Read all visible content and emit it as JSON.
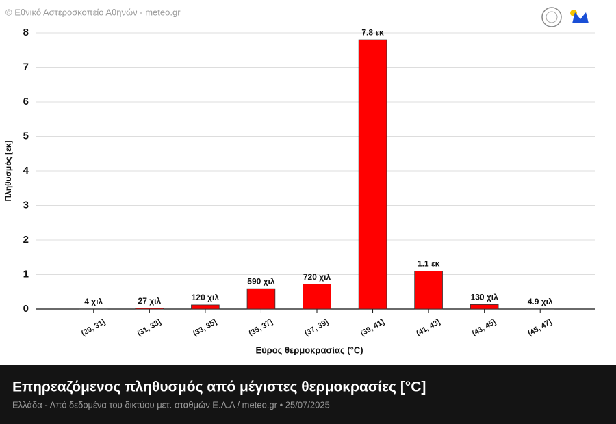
{
  "chart_data": {
    "type": "bar",
    "source": "© Εθνικό Αστεροσκοπείο Αθηνών - meteo.gr",
    "title": "Επηρεαζόμενος πληθυσμός από μέγιστες θερμοκρασίες [°C]",
    "subtitle": "Ελλάδα - Από δεδομένα του δικτύου μετ. σταθμών Ε.Α.Α / meteo.gr • 25/07/2025",
    "x_label": "Εύρος θερμοκρασίας (°C)",
    "y_label": "Πληθυσμός [εκ]",
    "categories": [
      "(29, 31]",
      "(31, 33]",
      "(33, 35]",
      "(35, 37]",
      "(37, 39]",
      "(39, 41]",
      "(41, 43]",
      "(43, 45]",
      "(45, 47]"
    ],
    "values": [
      0.004,
      0.027,
      0.12,
      0.59,
      0.72,
      7.8,
      1.1,
      0.13,
      0.0049
    ],
    "value_labels": [
      "4 χιλ",
      "27 χιλ",
      "120 χιλ",
      "590 χιλ",
      "720 χιλ",
      "7.8 εκ",
      "1.1 εκ",
      "130 χιλ",
      "4.9 χιλ"
    ],
    "color": "#ff0000",
    "ylim": [
      0,
      8
    ],
    "yticks": [
      0,
      1,
      2,
      3,
      4,
      5,
      6,
      7,
      8
    ],
    "grid": true
  }
}
